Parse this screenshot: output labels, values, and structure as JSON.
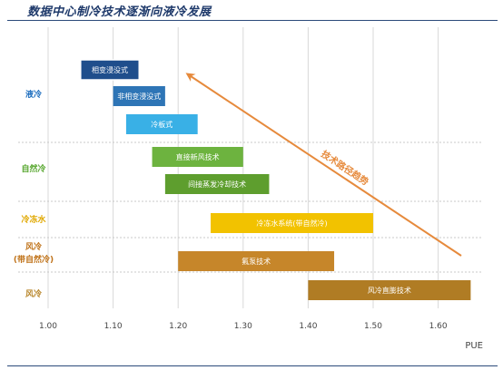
{
  "page_title": "数据中心制冷技术逐渐向液冷发展",
  "colors": {
    "title": "#1f3a6b",
    "rule": "#2b4a7a",
    "category_liquid": "#1f6fbf",
    "category_natural": "#5aa832",
    "category_chilled_water": "#e0a800",
    "category_air_natural": "#c0731a",
    "category_air": "#b8862a",
    "arrow": "#e68a3c",
    "grid": "#d9d9d9"
  },
  "chart_data": {
    "type": "bar",
    "subtype": "range-bar",
    "xlabel": "PUE",
    "xlim": [
      1.0,
      1.65
    ],
    "xticks": [
      "1.00",
      "1.10",
      "1.20",
      "1.30",
      "1.40",
      "1.50",
      "1.60"
    ],
    "grid": true,
    "categories": [
      {
        "label": "液冷",
        "color": "#1f6fbf"
      },
      {
        "label": "自然冷",
        "color": "#5aa832"
      },
      {
        "label": "冷冻水",
        "color": "#e0a800"
      },
      {
        "label_lines": [
          "风冷",
          "(带自然冷)"
        ],
        "color": "#c0731a"
      },
      {
        "label": "风冷",
        "color": "#b8862a"
      }
    ],
    "bars": [
      {
        "label": "相变浸没式",
        "start": 1.05,
        "end": 1.14,
        "category": 0,
        "fill": "#1f4e8c",
        "text_color": "#ffffff",
        "outline": true
      },
      {
        "label": "非相变浸没式",
        "start": 1.1,
        "end": 1.18,
        "category": 0,
        "fill": "#2e75b6",
        "text_color": "#ffffff",
        "outline": false
      },
      {
        "label": "冷板式",
        "start": 1.12,
        "end": 1.23,
        "category": 0,
        "fill": "#39b0e6",
        "text_color": "#ffffff",
        "outline": false
      },
      {
        "label": "直接新风技术",
        "start": 1.16,
        "end": 1.3,
        "category": 1,
        "fill": "#6db33f",
        "text_color": "#ffffff",
        "outline": false
      },
      {
        "label": "间接蒸发冷却技术",
        "start": 1.18,
        "end": 1.34,
        "category": 1,
        "fill": "#5e9e2e",
        "text_color": "#ffffff",
        "outline": false
      },
      {
        "label": "冷冻水系统(带自然冷)",
        "start": 1.25,
        "end": 1.5,
        "category": 2,
        "fill": "#f2c200",
        "text_color": "#ffffff",
        "outline": false
      },
      {
        "label": "氟泵技术",
        "start": 1.2,
        "end": 1.44,
        "category": 3,
        "fill": "#c6862a",
        "text_color": "#ffffff",
        "outline": false
      },
      {
        "label": "风冷直膨技术",
        "start": 1.4,
        "end": 1.65,
        "category": 4,
        "fill": "#b07c24",
        "text_color": "#ffffff",
        "outline": false
      }
    ],
    "annotations": [
      {
        "text": "技术路径趋势",
        "type": "arrow",
        "from_pue": 1.6,
        "to_pue": 1.2,
        "color": "#e68a3c"
      }
    ]
  }
}
